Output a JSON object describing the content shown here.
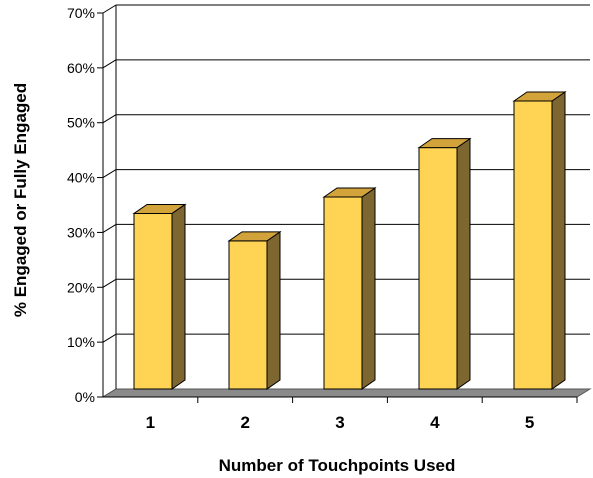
{
  "chart_data": {
    "type": "bar",
    "style": "3d-column",
    "title": "",
    "xlabel": "Number of Touchpoints Used",
    "ylabel": "% Engaged or Fully Engaged",
    "categories": [
      "1",
      "2",
      "3",
      "4",
      "5"
    ],
    "series": [
      {
        "values": [
          32,
          27,
          35,
          44,
          52.5
        ]
      }
    ],
    "ylim": [
      0,
      70
    ],
    "yticks": [
      "0%",
      "10%",
      "20%",
      "30%",
      "40%",
      "50%",
      "60%",
      "70%"
    ],
    "grid": true,
    "legend": "none"
  },
  "colors": {
    "bar_front": "#FFD455",
    "bar_top": "#D2A33A",
    "bar_side": "#7E6630",
    "floor": "#8A8A8A",
    "grid": "#000000"
  }
}
